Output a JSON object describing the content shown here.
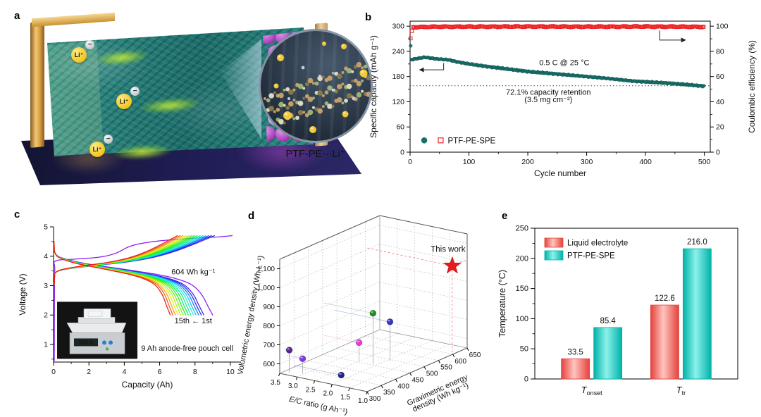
{
  "page": {
    "background": "#ffffff"
  },
  "panels": {
    "a": {
      "label": "a",
      "illustration": {
        "ion_label": "Li⁺",
        "anion_label": "−",
        "inset_caption": "PTF-PE···Li⁺",
        "colors": {
          "electrolyte": "#257f7a",
          "anode_foil": "#e3a84f",
          "cathode_particle": "#b044c4",
          "right_collector": "#dfbd8d",
          "floor": "#1a1f3d",
          "ion": "#f4d34a",
          "glow": "#a8e03a",
          "inset_background": "#2b3848"
        }
      }
    },
    "b": {
      "label": "b"
    },
    "c": {
      "label": "c"
    },
    "d": {
      "label": "d"
    },
    "e": {
      "label": "e"
    }
  },
  "chart_data": [
    {
      "id": "b",
      "type": "scatter",
      "xlabel": "Cycle number",
      "ylabel_left": "Specific capacity (mAh g⁻¹)",
      "ylabel_right": "Coulombic efficiency (%)",
      "xlim": [
        0,
        510
      ],
      "xticks": [
        0,
        100,
        200,
        300,
        400,
        500
      ],
      "ylim_left": [
        0,
        312
      ],
      "yticks_left": [
        0,
        60,
        120,
        180,
        240,
        300
      ],
      "ylim_right": [
        0,
        104
      ],
      "yticks_right": [
        0,
        20,
        40,
        60,
        80,
        100
      ],
      "grid": false,
      "series": [
        {
          "name": "PTF-PE-SPE specific capacity",
          "marker": "filled-circle",
          "color": "#17716b",
          "anchors": [
            [
              1,
              253
            ],
            [
              2,
              220
            ],
            [
              8,
              222
            ],
            [
              25,
              226
            ],
            [
              45,
              222
            ],
            [
              65,
              220
            ],
            [
              80,
              215
            ],
            [
              100,
              210
            ],
            [
              130,
              204
            ],
            [
              160,
              199
            ],
            [
              200,
              192
            ],
            [
              250,
              186
            ],
            [
              300,
              180
            ],
            [
              340,
              175
            ],
            [
              380,
              169
            ],
            [
              420,
              166
            ],
            [
              460,
              162
            ],
            [
              500,
              157
            ]
          ]
        },
        {
          "name": "PTF-PE-SPE coulombic efficiency",
          "marker": "open-square",
          "color": "#ee2124",
          "anchors": [
            [
              1,
              90
            ],
            [
              2,
              93
            ],
            [
              4,
              99.2
            ],
            [
              50,
              99.6
            ],
            [
              100,
              99.6
            ],
            [
              200,
              99.7
            ],
            [
              300,
              99.6
            ],
            [
              400,
              99.7
            ],
            [
              500,
              99.5
            ]
          ]
        }
      ],
      "retention_line": {
        "y": 158,
        "style": "dotted"
      },
      "annotations": {
        "condition": "0.5 C @ 25 °C",
        "retention": "72.1% capacity retention",
        "loading": "(3.5 mg cm⁻²)"
      },
      "legend_label": "PTF-PE-SPE"
    },
    {
      "id": "c",
      "type": "line",
      "xlabel": "Capacity (Ah)",
      "ylabel": "Voltage (V)",
      "xlim": [
        0,
        10.6
      ],
      "xticks": [
        0,
        2,
        4,
        6,
        8,
        10
      ],
      "ylim": [
        0.4,
        5
      ],
      "yticks": [
        1,
        2,
        3,
        4,
        5
      ],
      "cycles": 15,
      "color_order": "1st cycle purple → 15th cycle red",
      "voltage_window": [
        2.0,
        4.7
      ],
      "first_cycle": {
        "charge_end_Ah": 10.1,
        "discharge_end_Ah": 9.0
      },
      "second_cycle": {
        "charge_end_Ah": 9.1,
        "discharge_end_Ah": 8.5
      },
      "fifteenth_cycle": {
        "charge_end_Ah": 7.0,
        "discharge_end_Ah": 6.6
      },
      "annotations": {
        "energy": "604 Wh kg⁻¹",
        "cycle_range": "15th ← 1st",
        "inset_caption": "9 Ah anode-free pouch cell"
      },
      "inset_display_value": "506.0"
    },
    {
      "id": "d",
      "type": "scatter3d",
      "zlabel": "Volumetric energy density (Wh L⁻¹)",
      "xlabel_italic": "E/C",
      "xlabel_rest": " ratio (g Ah⁻¹)",
      "ylabel_line1": "Gravimetric energy",
      "ylabel_line2": "density (Wh kg⁻¹)",
      "xlim": [
        3.5,
        1.0
      ],
      "ylim": [
        300,
        650
      ],
      "zlim": [
        550,
        1150
      ],
      "xticks": [
        3.5,
        3.0,
        2.5,
        2.0,
        1.5,
        1.0
      ],
      "yticks": [
        300,
        350,
        400,
        450,
        500,
        550,
        600,
        650
      ],
      "zticks": [
        600,
        700,
        800,
        900,
        1000,
        1100
      ],
      "ztick_labels": [
        "600",
        "700",
        "800",
        "900",
        "1,000",
        "1,100"
      ],
      "points": [
        {
          "color": "#5a2586",
          "ec": 3.35,
          "grav": 315,
          "vol": 668
        },
        {
          "color": "#7a3bd8",
          "ec": 3.05,
          "grav": 325,
          "vol": 628
        },
        {
          "color": "#24248f",
          "ec": 2.15,
          "grav": 350,
          "vol": 560
        },
        {
          "color": "#1f8c1f",
          "ec": 2.1,
          "grav": 455,
          "vol": 818
        },
        {
          "color": "#3333cc",
          "ec": 1.9,
          "grav": 490,
          "vol": 758
        },
        {
          "color": "#e23ecf",
          "ec": 2.5,
          "grav": 455,
          "vol": 648
        }
      ],
      "star": {
        "color": "#e8191f",
        "ec": 1.05,
        "grav": 604,
        "vol": 1010,
        "label": "This work"
      }
    },
    {
      "id": "e",
      "type": "bar",
      "ylabel": "Temperature (°C)",
      "ylim": [
        0,
        250
      ],
      "yticks": [
        0,
        50,
        100,
        150,
        200,
        250
      ],
      "categories": [
        {
          "prefix": "T",
          "sub": "onset"
        },
        {
          "prefix": "T",
          "sub": "tr"
        }
      ],
      "series": [
        {
          "name": "Liquid electrolyte",
          "edge_color": "#e4423b",
          "light_color": "#ffc4bf",
          "values": [
            33.5,
            122.6
          ],
          "value_labels": [
            "33.5",
            "122.6"
          ]
        },
        {
          "name": "PTF-PE-SPE",
          "edge_color": "#00b2a9",
          "light_color": "#8bf2ea",
          "values": [
            85.4,
            216.0
          ],
          "value_labels": [
            "85.4",
            "216.0"
          ]
        }
      ],
      "legend_position": "top-left"
    }
  ]
}
